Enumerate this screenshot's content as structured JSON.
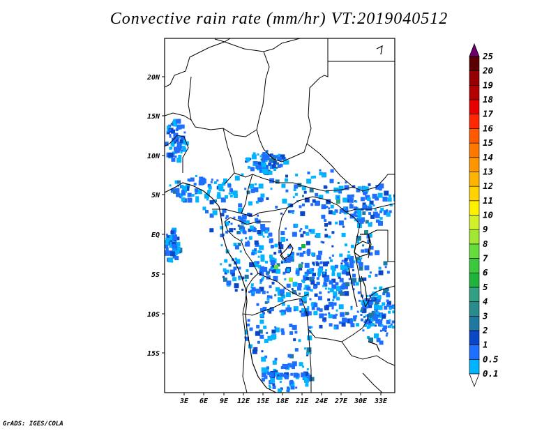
{
  "title": "Convective rain rate (mm/hr) VT:2019040512",
  "credit": "GrADS: IGES/COLA",
  "map": {
    "lat_labels": [
      "20N",
      "15N",
      "10N",
      "5N",
      "EQ",
      "5S",
      "10S",
      "15S"
    ],
    "lon_labels": [
      "3E",
      "6E",
      "9E",
      "12E",
      "15E",
      "18E",
      "21E",
      "24E",
      "27E",
      "30E",
      "33E"
    ]
  },
  "colorbar": {
    "levels": [
      "0.1",
      "0.5",
      "1",
      "2",
      "3",
      "4",
      "5",
      "6",
      "7",
      "8",
      "9",
      "10",
      "11",
      "12",
      "13",
      "14",
      "15",
      "16",
      "17",
      "18",
      "19",
      "20",
      "25"
    ],
    "colors": [
      "#00b4ff",
      "#1e6eff",
      "#0a46c8",
      "#1e78a0",
      "#288c8c",
      "#32a082",
      "#1eb43c",
      "#3cc83c",
      "#64dc3c",
      "#a0e632",
      "#d2f028",
      "#fff000",
      "#ffd200",
      "#ffb400",
      "#ff9600",
      "#ff7800",
      "#ff5a00",
      "#ff2800",
      "#e60000",
      "#b40000",
      "#960000",
      "#5a0000",
      "#6e006e"
    ],
    "above_color": "#6e006e",
    "below_color": "#ffffff"
  }
}
